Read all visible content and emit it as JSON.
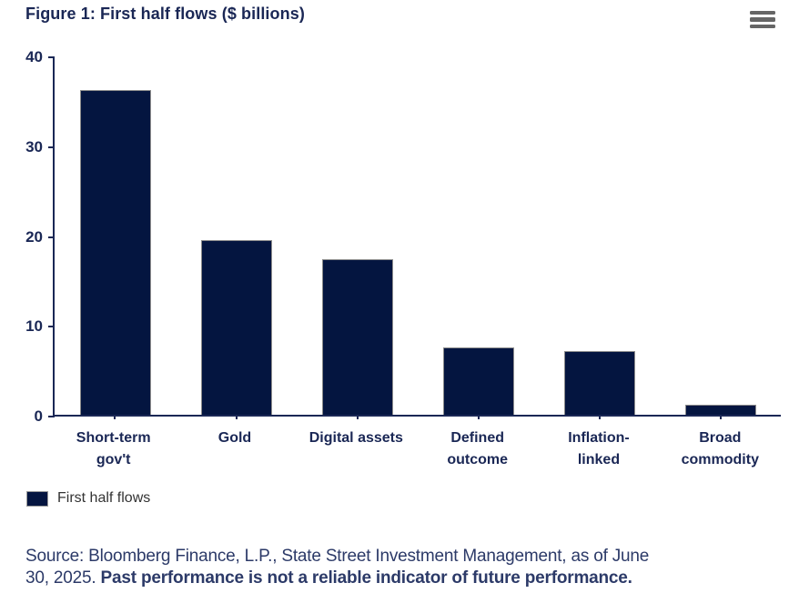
{
  "header": {
    "title": "Figure 1: First half flows ($ billions)"
  },
  "menu": {
    "icon": "hamburger-context-menu"
  },
  "chart_data": {
    "type": "bar",
    "categories": [
      "Short-term gov't",
      "Gold",
      "Digital assets",
      "Defined outcome",
      "Inflation-linked",
      "Broad commodity"
    ],
    "series": [
      {
        "name": "First half flows",
        "values": [
          36.2,
          19.4,
          17.3,
          7.5,
          7.1,
          1.1
        ]
      }
    ],
    "title": "Figure 1: First half flows ($ billions)",
    "xlabel": "",
    "ylabel": "",
    "ylim": [
      0,
      40
    ],
    "yticks": [
      0,
      10,
      20,
      30,
      40
    ],
    "grid": false,
    "legend_position": "bottom-left",
    "bar_color": "#041540",
    "bar_border_color": "#8c8c8c"
  },
  "legend": {
    "label": "First half flows",
    "swatch_color": "#041540"
  },
  "footer": {
    "source_line1": "Source: Bloomberg Finance, L.P., State Street Investment Management, as of June",
    "source_line2_regular": "30, 2025. ",
    "source_line2_bold": "Past performance is not a reliable indicator of future performance."
  },
  "colors": {
    "accent_navy": "#1a2755",
    "bar_navy": "#041540",
    "source_text": "#2c3a68",
    "menu_gray": "#666666",
    "legend_text": "#333333"
  }
}
